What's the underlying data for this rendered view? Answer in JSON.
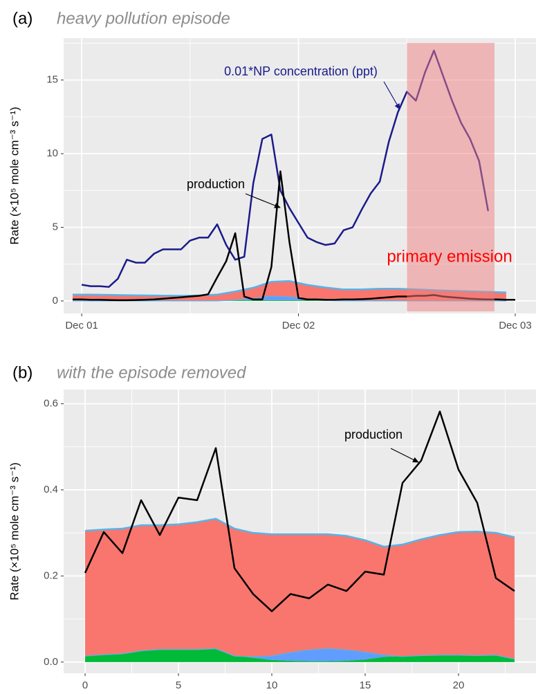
{
  "chart_data": [
    {
      "type": "line",
      "label": "(a)",
      "title": "heavy pollution episode",
      "y_label": "Rate (×10⁵ mole cm⁻³ s⁻¹)",
      "xlim": [
        -2,
        50.3
      ],
      "ylim": [
        -0.85,
        17.85
      ],
      "xticks": [
        {
          "value": 0,
          "label": "Dec 01"
        },
        {
          "value": 24,
          "label": "Dec 02"
        },
        {
          "value": 48,
          "label": "Dec 03"
        }
      ],
      "yticks": [
        0,
        5,
        10,
        15
      ],
      "minor_xticks": [
        12,
        36
      ],
      "minor_yticks": [
        2.5,
        7.5,
        12.5,
        17.5
      ],
      "grid": true,
      "series": [
        {
          "kind": "area",
          "color": "#00ba38",
          "x": [
            -1,
            1,
            3,
            5,
            7,
            9,
            11,
            13,
            15,
            17,
            19,
            21,
            23,
            25,
            27,
            29,
            31,
            33,
            35,
            37,
            39,
            41,
            43,
            45,
            47
          ],
          "values": [
            0.03,
            0.03,
            0.03,
            0.03,
            0.03,
            0.03,
            0.03,
            0.03,
            0.03,
            0.04,
            0.05,
            0.05,
            0.05,
            0.04,
            0.03,
            0.03,
            0.03,
            0.03,
            0.03,
            0.03,
            0.03,
            0.03,
            0.03,
            0.03,
            0.03
          ]
        },
        {
          "kind": "area",
          "color": "#619cff",
          "outline": "#56b4e9",
          "x": [
            -1,
            1,
            3,
            5,
            7,
            9,
            11,
            13,
            15,
            17,
            19,
            21,
            23,
            25,
            27,
            29,
            31,
            33,
            35,
            37,
            39,
            41,
            43,
            45,
            47
          ],
          "values": [
            0,
            0,
            0,
            0,
            0,
            0,
            0,
            0,
            0,
            0.05,
            0.15,
            0.3,
            0.25,
            0.1,
            0.03,
            0,
            0,
            0,
            0,
            0,
            0,
            0,
            0,
            0,
            0
          ]
        },
        {
          "kind": "area",
          "color": "#f8766d",
          "outline": "#56b4e9",
          "x": [
            -1,
            1,
            3,
            5,
            7,
            9,
            11,
            13,
            15,
            17,
            19,
            21,
            23,
            25,
            27,
            29,
            31,
            33,
            35,
            37,
            39,
            41,
            43,
            45,
            47
          ],
          "values": [
            0.4,
            0.4,
            0.38,
            0.36,
            0.35,
            0.33,
            0.32,
            0.34,
            0.4,
            0.55,
            0.7,
            0.95,
            1.05,
            0.95,
            0.85,
            0.75,
            0.75,
            0.8,
            0.8,
            0.75,
            0.7,
            0.65,
            0.62,
            0.58,
            0.55
          ]
        },
        {
          "kind": "line",
          "name": "0.01*NP concentration (ppt)",
          "color": "#1a1a8c",
          "x": [
            0,
            1,
            2,
            3,
            4,
            5,
            6,
            7,
            8,
            9,
            10,
            11,
            12,
            13,
            14,
            15,
            16,
            17,
            18,
            19,
            20,
            21,
            22,
            23,
            24,
            25,
            26,
            27,
            28,
            29,
            30,
            31,
            32,
            33,
            34,
            35,
            36,
            37,
            38,
            39,
            40,
            41,
            42,
            43,
            44,
            45
          ],
          "values": [
            1.1,
            1.0,
            1.0,
            0.95,
            1.5,
            2.8,
            2.6,
            2.6,
            3.2,
            3.5,
            3.5,
            3.5,
            4.1,
            4.3,
            4.3,
            5.2,
            3.8,
            2.8,
            3.0,
            8.0,
            11.0,
            11.3,
            7.5,
            6.3,
            5.3,
            4.3,
            4.0,
            3.8,
            3.9,
            4.8,
            5.0,
            6.2,
            7.3,
            8.1,
            10.8,
            12.8,
            14.2,
            13.6,
            15.5,
            17.0,
            15.3,
            13.6,
            12.1,
            11.0,
            9.5,
            6.1
          ]
        },
        {
          "kind": "line",
          "name": "production",
          "color": "#000000",
          "x": [
            -1,
            0,
            1,
            2,
            3,
            4,
            5,
            6,
            7,
            8,
            9,
            10,
            11,
            12,
            13,
            14,
            15,
            16,
            17,
            18,
            19,
            20,
            21,
            22,
            23,
            24,
            25,
            26,
            27,
            28,
            29,
            30,
            31,
            32,
            33,
            34,
            35,
            36,
            37,
            38,
            39,
            40,
            41,
            42,
            43,
            44,
            45,
            46,
            47,
            48
          ],
          "values": [
            0.1,
            0.1,
            0.08,
            0.08,
            0.06,
            0.05,
            0.05,
            0.06,
            0.08,
            0.1,
            0.15,
            0.2,
            0.25,
            0.3,
            0.35,
            0.45,
            1.6,
            2.7,
            4.6,
            0.3,
            0.1,
            0.1,
            2.3,
            8.8,
            4.0,
            0.2,
            0.1,
            0.1,
            0.08,
            0.08,
            0.1,
            0.1,
            0.12,
            0.15,
            0.2,
            0.25,
            0.3,
            0.3,
            0.35,
            0.35,
            0.4,
            0.3,
            0.25,
            0.2,
            0.15,
            0.12,
            0.1,
            0.1,
            0.08,
            0.08
          ]
        }
      ],
      "shade": {
        "x": [
          36,
          45.7
        ],
        "color": "#f08080",
        "label": "primary emission",
        "label_color": "#ff0000"
      }
    },
    {
      "type": "line",
      "label": "(b)",
      "title": "with the episode removed",
      "y_label": "Rate (×10⁵ mole cm⁻³ s⁻¹)",
      "xlim": [
        -1.15,
        24.15
      ],
      "ylim": [
        -0.026,
        0.633
      ],
      "xticks": [
        0,
        5,
        10,
        15,
        20
      ],
      "yticks": [
        {
          "value": 0,
          "label": "0.0"
        },
        0.2,
        0.4,
        0.6
      ],
      "minor_xticks": [
        2.5,
        7.5,
        12.5,
        17.5,
        22.5
      ],
      "minor_yticks": [
        0.1,
        0.3,
        0.5
      ],
      "grid": true,
      "series": [
        {
          "kind": "area",
          "color": "#00ba38",
          "x": [
            0,
            1,
            2,
            3,
            4,
            5,
            6,
            7,
            8,
            9,
            10,
            11,
            12,
            13,
            14,
            15,
            16,
            17,
            18,
            19,
            20,
            21,
            22,
            23
          ],
          "values": [
            0.015,
            0.018,
            0.02,
            0.027,
            0.03,
            0.03,
            0.03,
            0.032,
            0.015,
            0.01,
            0.005,
            0.003,
            0.002,
            0.002,
            0.003,
            0.006,
            0.012,
            0.014,
            0.016,
            0.017,
            0.017,
            0.016,
            0.017,
            0.008
          ]
        },
        {
          "kind": "area",
          "color": "#619cff",
          "outline": "#56b4e9",
          "x": [
            0,
            1,
            2,
            3,
            4,
            5,
            6,
            7,
            8,
            9,
            10,
            11,
            12,
            13,
            14,
            15,
            16,
            17,
            18,
            19,
            20,
            21,
            22,
            23
          ],
          "values": [
            0,
            0,
            0,
            0,
            0,
            0,
            0,
            0,
            0,
            0.003,
            0.01,
            0.02,
            0.027,
            0.03,
            0.026,
            0.018,
            0.005,
            0,
            0,
            0,
            0,
            0,
            0,
            0
          ]
        },
        {
          "kind": "area",
          "color": "#f8766d",
          "outline": "#56b4e9",
          "x": [
            0,
            1,
            2,
            3,
            4,
            5,
            6,
            7,
            8,
            9,
            10,
            11,
            12,
            13,
            14,
            15,
            16,
            17,
            18,
            19,
            20,
            21,
            22,
            23
          ],
          "values": [
            0.29,
            0.29,
            0.29,
            0.291,
            0.288,
            0.29,
            0.295,
            0.301,
            0.295,
            0.287,
            0.282,
            0.274,
            0.268,
            0.265,
            0.264,
            0.259,
            0.251,
            0.259,
            0.269,
            0.278,
            0.285,
            0.287,
            0.283,
            0.282
          ]
        },
        {
          "kind": "line",
          "name": "production",
          "color": "#000000",
          "x": [
            0,
            1,
            2,
            3,
            4,
            5,
            6,
            7,
            8,
            9,
            10,
            11,
            12,
            13,
            14,
            15,
            16,
            17,
            18,
            19,
            20,
            21,
            22,
            23
          ],
          "values": [
            0.207,
            0.302,
            0.253,
            0.376,
            0.295,
            0.382,
            0.376,
            0.497,
            0.218,
            0.158,
            0.118,
            0.158,
            0.148,
            0.18,
            0.165,
            0.21,
            0.203,
            0.416,
            0.468,
            0.582,
            0.447,
            0.37,
            0.195,
            0.165
          ]
        }
      ]
    }
  ]
}
